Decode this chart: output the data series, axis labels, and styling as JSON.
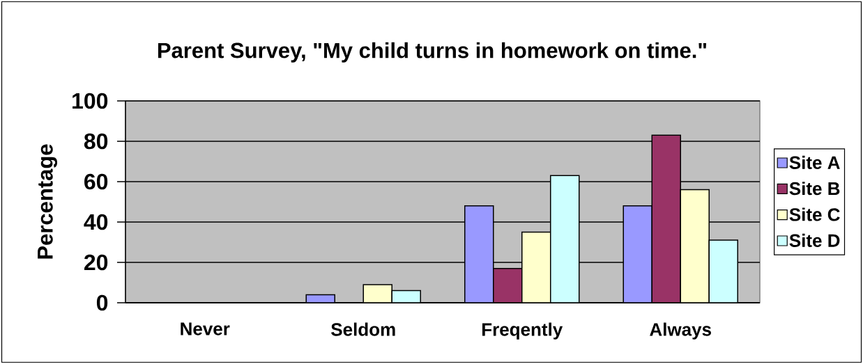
{
  "chart_data": {
    "type": "bar",
    "title": "Parent Survey, \"My child turns in homework on time.\"",
    "ylabel": "Percentage",
    "categories": [
      "Never",
      "Seldom",
      "Freqently",
      "Always"
    ],
    "series": [
      {
        "name": "Site A",
        "color": "#9999ff",
        "values": [
          null,
          4,
          48,
          48
        ]
      },
      {
        "name": "Site B",
        "color": "#993366",
        "values": [
          null,
          null,
          17,
          83
        ]
      },
      {
        "name": "Site C",
        "color": "#ffffcc",
        "values": [
          null,
          9,
          35,
          56
        ]
      },
      {
        "name": "Site D",
        "color": "#ccffff",
        "values": [
          null,
          6,
          63,
          31
        ]
      }
    ],
    "ylim": [
      0,
      100
    ],
    "yticks": [
      0,
      20,
      40,
      60,
      80,
      100
    ],
    "grid": "y",
    "legend": "right"
  }
}
